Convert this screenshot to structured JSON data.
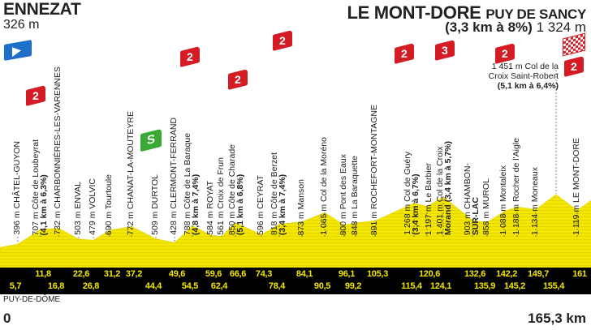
{
  "header": {
    "start_name": "ENNEZAT",
    "start_alt": "326 m",
    "finish_name": "LE MONT-DORE",
    "finish_sub": "PUY DE SANCY",
    "finish_climb": "(3,3 km à 8%)",
    "finish_alt": "1 324 m"
  },
  "footer": {
    "region": "PUY-DE-DÔME",
    "km_start": "0",
    "km_end": "165,3 km"
  },
  "colors": {
    "profile": "#f3e600",
    "climb": "#d51b24",
    "sprint": "#3aaa35",
    "start": "#1e6fc9",
    "bar": "#000000"
  },
  "chart_data": {
    "type": "area",
    "title": "ENNEZAT - LE MONT-DORE PUY DE SANCY",
    "xlabel": "km",
    "ylabel": "m",
    "xlim": [
      0,
      165.3
    ],
    "start": {
      "km": 0,
      "alt": 326
    },
    "finish": {
      "km": 165.3,
      "alt": 1324,
      "climb_category": "2",
      "sprint_symbol": "S"
    },
    "waypoints": [
      {
        "km": 5.7,
        "km_label": "5,7",
        "alt": 396,
        "label": "396 m CHÂTEL-GUYON"
      },
      {
        "km": 11.8,
        "km_label": "11,8",
        "alt": 707,
        "label": "707 m Côte de Loubeyrat",
        "detail": "(4,1 km à 6,3%)",
        "category": "2"
      },
      {
        "km": 16.8,
        "km_label": "16,8",
        "alt": 732,
        "label": "732 m CHARBONNIÈRES-LES-VARENNES"
      },
      {
        "km": 22.6,
        "km_label": "22,6",
        "alt": 503,
        "label": "503 m ENVAL"
      },
      {
        "km": 26.8,
        "km_label": "26,8",
        "alt": 479,
        "label": "479 m VOLVIC"
      },
      {
        "km": 31.2,
        "km_label": "31,2",
        "alt": 690,
        "label": "690 m Tourtoule"
      },
      {
        "km": 37.2,
        "km_label": "37,2",
        "alt": 772,
        "label": "772 m CHANAT-LA-MOUTEYRE"
      },
      {
        "km": 44.4,
        "km_label": "44,4",
        "alt": 509,
        "label": "509 m DURTOL",
        "sprint": "S"
      },
      {
        "km": 49.6,
        "km_label": "49,6",
        "alt": 428,
        "label": "428 m CLERMONT-FERRAND"
      },
      {
        "km": 54.5,
        "km_label": "54,5",
        "alt": 788,
        "label": "788 m Côte de La Baraque",
        "detail": "(4,8 km à 7,4%)",
        "category": "2"
      },
      {
        "km": 59.6,
        "km_label": "59,6",
        "alt": 584,
        "label": "584 m ROYAT"
      },
      {
        "km": 62.4,
        "km_label": "62,4",
        "alt": 561,
        "label": "561 m Croix de Frun"
      },
      {
        "km": 66.6,
        "km_label": "66,6",
        "alt": 850,
        "label": "850 m Côte de Charade",
        "detail": "(5,1 km à 6,8%)",
        "category": "2"
      },
      {
        "km": 74.3,
        "km_label": "74,3",
        "alt": 596,
        "label": "596 m CEYRAT"
      },
      {
        "km": 78.4,
        "km_label": "78,4",
        "alt": 818,
        "label": "818 m Côte de Berzet",
        "detail": "(3,4 km à 7,4%)",
        "category": "2"
      },
      {
        "km": 84.1,
        "km_label": "84,1",
        "alt": 873,
        "label": "873 m Manson"
      },
      {
        "km": 90.5,
        "km_label": "90,5",
        "alt": 1065,
        "label": "1 065 m Col de la Moréno"
      },
      {
        "km": 96.1,
        "km_label": "96,1",
        "alt": 800,
        "label": "800 m Pont des Eaux"
      },
      {
        "km": 99.2,
        "km_label": "99,2",
        "alt": 848,
        "label": "848 m La Baraquette"
      },
      {
        "km": 105.3,
        "km_label": "105,3",
        "alt": 891,
        "label": "891 m ROCHEFORT-MONTAGNE"
      },
      {
        "km": 115.4,
        "km_label": "115,4",
        "alt": 1268,
        "label": "1 268 m Col de Guéry",
        "detail": "(3,4 km à 6,7%)",
        "category": "2"
      },
      {
        "km": 120.6,
        "km_label": "120,6",
        "alt": 1197,
        "label": "1 197 m Le Barbier"
      },
      {
        "km": 124.1,
        "km_label": "124,1",
        "alt": 1401,
        "label": "1 401 m Col de la Croix",
        "detail": "Morand (3,4 km à 5,7%)",
        "category": "3"
      },
      {
        "km": 132.6,
        "km_label": "132,6",
        "alt": 903,
        "label": "903 m CHAMBON-",
        "detail": "SUR-LAC"
      },
      {
        "km": 135.9,
        "km_label": "135,9",
        "alt": 858,
        "label": "858 m MUROL"
      },
      {
        "km": 142.2,
        "km_label": "142,2",
        "alt": 1088,
        "label": "1 088 m Montaleix"
      },
      {
        "km": 145.2,
        "km_label": "145,2",
        "alt": 1188,
        "label": "1 188 m Rocher de l'Aigle"
      },
      {
        "km": 149.7,
        "km_label": "149,7",
        "alt": 1134,
        "label": "1 134 m Moneaux"
      },
      {
        "km": 155.4,
        "km_label": "155,4",
        "alt": 1451,
        "label": "1 451 m Col de la",
        "label2": "Croix Saint-Robert",
        "detail": "(5,1 km à 6,4%)",
        "category": "2"
      },
      {
        "km": 161,
        "km_label": "161",
        "alt": 1119,
        "label": "1 119 m LE MONT-DORE"
      }
    ]
  }
}
